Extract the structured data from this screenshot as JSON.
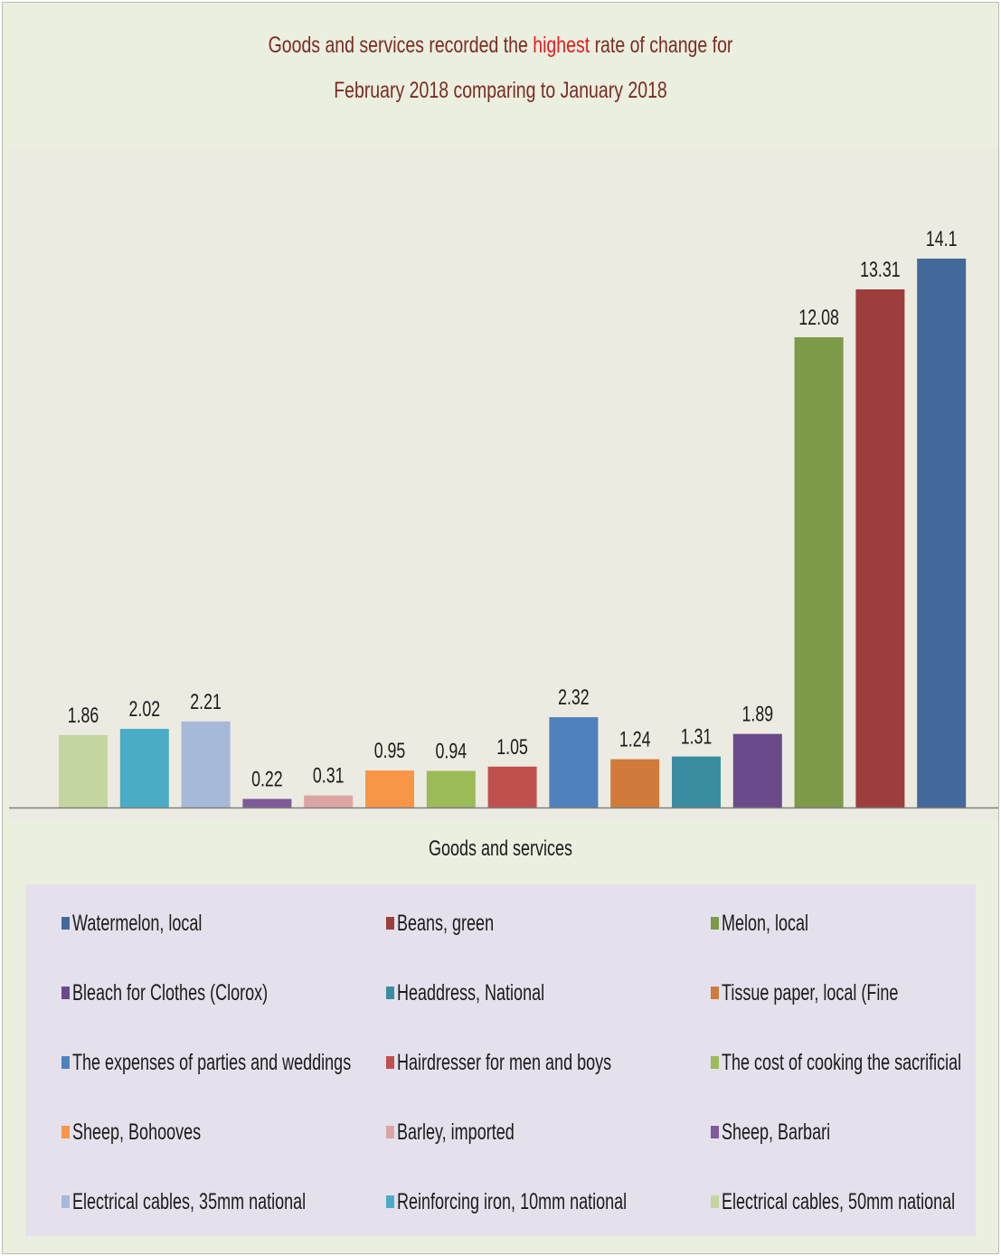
{
  "chart_data": {
    "type": "bar",
    "title_parts": [
      "Goods and services recorded the ",
      "highest",
      " rate of change for"
    ],
    "title_line2": "February 2018 comparing to January 2018",
    "xlabel": "Goods and services",
    "ylim": [
      0,
      15
    ],
    "grid": false,
    "legend_position": "bottom",
    "categories": [
      "Electrical cables, 50mm national",
      "Reinforcing iron, 10mm national",
      "Electrical cables, 35mm national",
      "Sheep, Barbari",
      "Barley, imported",
      "Sheep, Bohooves",
      "The cost of cooking the sacrificial",
      "Hairdresser for men and boys",
      "The expenses of parties and weddings",
      "Tissue paper, local (Fine",
      "Headdress, National",
      "Bleach for Clothes (Clorox)",
      "Melon, local",
      "Beans, green",
      "Watermelon, local"
    ],
    "values": [
      1.86,
      2.02,
      2.21,
      0.22,
      0.31,
      0.95,
      0.94,
      1.05,
      2.32,
      1.24,
      1.31,
      1.89,
      12.08,
      13.31,
      14.1
    ],
    "value_labels": [
      "1.86",
      "2.02",
      "2.21",
      "0.22",
      "0.31",
      "0.95",
      "0.94",
      "1.05",
      "2.32",
      "1.24",
      "1.31",
      "1.89",
      "12.08",
      "13.31",
      "14.1"
    ],
    "colors": [
      "#c4d6a0",
      "#4bacc6",
      "#a6b9d9",
      "#7e5a9b",
      "#dba5a4",
      "#f79646",
      "#9bbb59",
      "#c0504d",
      "#4f81bd",
      "#d07b3b",
      "#3a8da0",
      "#6a4a8a",
      "#7c9a48",
      "#9e3e3c",
      "#42699a"
    ],
    "legend": [
      {
        "label": "Watermelon, local",
        "color": "#42699a"
      },
      {
        "label": "Beans, green",
        "color": "#9e3e3c"
      },
      {
        "label": "Melon, local",
        "color": "#7c9a48"
      },
      {
        "label": "Bleach for Clothes (Clorox)",
        "color": "#6a4a8a"
      },
      {
        "label": "Headdress, National",
        "color": "#3a8da0"
      },
      {
        "label": "Tissue paper, local (Fine",
        "color": "#d07b3b"
      },
      {
        "label": "The expenses of parties and weddings",
        "color": "#4f81bd"
      },
      {
        "label": "Hairdresser for men and boys",
        "color": "#c0504d"
      },
      {
        "label": "The cost of cooking the sacrificial",
        "color": "#9bbb59"
      },
      {
        "label": "Sheep, Bohooves",
        "color": "#f79646"
      },
      {
        "label": "Barley, imported",
        "color": "#dba5a4"
      },
      {
        "label": "Sheep, Barbari",
        "color": "#7e5a9b"
      },
      {
        "label": "Electrical cables, 35mm national",
        "color": "#a6b9d9"
      },
      {
        "label": "Reinforcing iron, 10mm national",
        "color": "#4bacc6"
      },
      {
        "label": "Electrical cables, 50mm national",
        "color": "#c4d6a0"
      }
    ]
  }
}
